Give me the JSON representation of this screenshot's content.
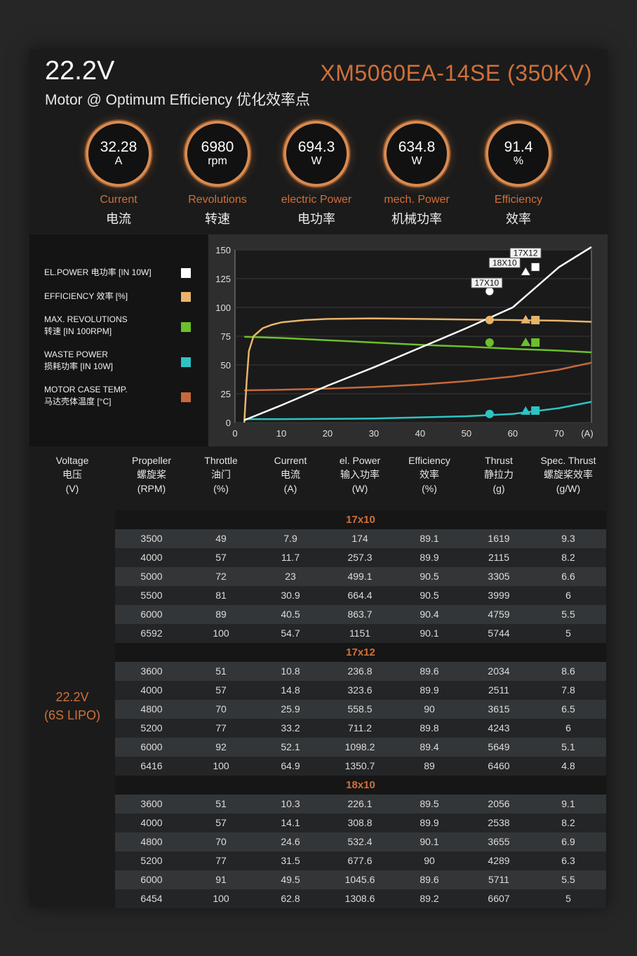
{
  "header": {
    "voltage": "22.2V",
    "model": "XM5060EA-14SE (350KV)",
    "subtitle": "Motor @ Optimum Efficiency  优化效率点"
  },
  "gauges": [
    {
      "value": "32.28",
      "unit": "A",
      "en": "Current",
      "cn": "电流"
    },
    {
      "value": "6980",
      "unit": "rpm",
      "en": "Revolutions",
      "cn": "转速"
    },
    {
      "value": "694.3",
      "unit": "W",
      "en": "electric Power",
      "cn": "电功率"
    },
    {
      "value": "634.8",
      "unit": "W",
      "en": "mech. Power",
      "cn": "机械功率"
    },
    {
      "value": "91.4",
      "unit": "%",
      "en": "Efficiency",
      "cn": "效率"
    }
  ],
  "legend": [
    {
      "line1": "EL.POWER 电功率 [IN 10W]",
      "line2": "",
      "color": "#ffffff"
    },
    {
      "line1": "EFFICIENCY 效率 [%]",
      "line2": "",
      "color": "#e8b46a"
    },
    {
      "line1": "MAX. REVOLUTIONS",
      "line2": "转速 [IN 100RPM]",
      "color": "#6cc02a"
    },
    {
      "line1": "WASTE POWER",
      "line2": "损耗功率 [IN 10W]",
      "color": "#2ec4c4"
    },
    {
      "line1": "MOTOR CASE TEMP.",
      "line2": "马达壳体温度 [°C]",
      "color": "#c8683a"
    }
  ],
  "chart_data": {
    "type": "line",
    "xlim": [
      0,
      77
    ],
    "ylim": [
      0,
      150
    ],
    "x_ticks": [
      0,
      10,
      20,
      30,
      40,
      50,
      60,
      70
    ],
    "x_unit_label": "(A)",
    "y_ticks": [
      0,
      25,
      50,
      75,
      100,
      125,
      150
    ],
    "series": [
      {
        "name": "EL.POWER 电功率 [IN 10W]",
        "color": "#ffffff",
        "x": [
          2,
          10,
          20,
          30,
          40,
          50,
          60,
          70,
          78
        ],
        "y": [
          2,
          15,
          32,
          48,
          65,
          82,
          100,
          135,
          157
        ]
      },
      {
        "name": "EFFICIENCY 效率 [%]",
        "color": "#e8b46a",
        "x": [
          2,
          2.5,
          3,
          4,
          6,
          8,
          10,
          15,
          20,
          30,
          40,
          50,
          60,
          70,
          78
        ],
        "y": [
          0,
          35,
          62,
          75,
          82,
          85,
          87,
          89,
          90,
          90.5,
          90,
          89.5,
          89,
          88.5,
          87.5
        ]
      },
      {
        "name": "MAX. REVOLUTIONS 转速 [IN 100RPM]",
        "color": "#6cc02a",
        "x": [
          2,
          10,
          20,
          30,
          40,
          50,
          60,
          70,
          78
        ],
        "y": [
          74.5,
          73.5,
          71.5,
          69.5,
          67.5,
          66,
          64,
          62.5,
          61
        ]
      },
      {
        "name": "WASTE POWER 损耗功率 [IN 10W]",
        "color": "#2ec4c4",
        "x": [
          2,
          10,
          20,
          30,
          40,
          50,
          60,
          70,
          78
        ],
        "y": [
          3,
          3,
          3.2,
          3.5,
          4.5,
          5.5,
          7.5,
          12.5,
          18
        ]
      },
      {
        "name": "MOTOR CASE TEMP. 马达壳体温度 [°C]",
        "color": "#c8683a",
        "x": [
          2,
          10,
          20,
          30,
          40,
          50,
          60,
          70,
          78
        ],
        "y": [
          28,
          28.5,
          29.5,
          31,
          33,
          36,
          40,
          46,
          52
        ]
      }
    ],
    "markers": [
      {
        "label": "17X10",
        "x": 55,
        "shape": "circle",
        "values": [
          114,
          89.1,
          69.5,
          7.5
        ]
      },
      {
        "label": "18X10",
        "x": 62.8,
        "shape": "triangle",
        "values": [
          130.9,
          89.2,
          69.5,
          9.8
        ]
      },
      {
        "label": "17X12",
        "x": 64.9,
        "shape": "square",
        "values": [
          135.1,
          89.0,
          69.5,
          10.4
        ]
      }
    ]
  },
  "table": {
    "headers": [
      {
        "en": "Voltage",
        "cn": "电压",
        "unit": "(V)"
      },
      {
        "en": "Propeller",
        "cn": "螺旋桨",
        "unit": "(RPM)"
      },
      {
        "en": "Throttle",
        "cn": "油门",
        "unit": "(%)"
      },
      {
        "en": "Current",
        "cn": "电流",
        "unit": "(A)"
      },
      {
        "en": "el. Power",
        "cn": "输入功率",
        "unit": "(W)"
      },
      {
        "en": "Efficiency",
        "cn": "效率",
        "unit": "(%)"
      },
      {
        "en": "Thrust",
        "cn": "静拉力",
        "unit": "(g)"
      },
      {
        "en": "Spec. Thrust",
        "cn": "螺旋桨效率",
        "unit": "(g/W)"
      }
    ],
    "voltage_label": "22.2V",
    "voltage_sub": "(6S LIPO)",
    "groups": [
      {
        "name": "17x10",
        "rows": [
          [
            "3500",
            "49",
            "7.9",
            "174",
            "89.1",
            "1619",
            "9.3"
          ],
          [
            "4000",
            "57",
            "11.7",
            "257.3",
            "89.9",
            "2115",
            "8.2"
          ],
          [
            "5000",
            "72",
            "23",
            "499.1",
            "90.5",
            "3305",
            "6.6"
          ],
          [
            "5500",
            "81",
            "30.9",
            "664.4",
            "90.5",
            "3999",
            "6"
          ],
          [
            "6000",
            "89",
            "40.5",
            "863.7",
            "90.4",
            "4759",
            "5.5"
          ],
          [
            "6592",
            "100",
            "54.7",
            "1151",
            "90.1",
            "5744",
            "5"
          ]
        ]
      },
      {
        "name": "17x12",
        "rows": [
          [
            "3600",
            "51",
            "10.8",
            "236.8",
            "89.6",
            "2034",
            "8.6"
          ],
          [
            "4000",
            "57",
            "14.8",
            "323.6",
            "89.9",
            "2511",
            "7.8"
          ],
          [
            "4800",
            "70",
            "25.9",
            "558.5",
            "90",
            "3615",
            "6.5"
          ],
          [
            "5200",
            "77",
            "33.2",
            "711.2",
            "89.8",
            "4243",
            "6"
          ],
          [
            "6000",
            "92",
            "52.1",
            "1098.2",
            "89.4",
            "5649",
            "5.1"
          ],
          [
            "6416",
            "100",
            "64.9",
            "1350.7",
            "89",
            "6460",
            "4.8"
          ]
        ]
      },
      {
        "name": "18x10",
        "rows": [
          [
            "3600",
            "51",
            "10.3",
            "226.1",
            "89.5",
            "2056",
            "9.1"
          ],
          [
            "4000",
            "57",
            "14.1",
            "308.8",
            "89.9",
            "2538",
            "8.2"
          ],
          [
            "4800",
            "70",
            "24.6",
            "532.4",
            "90.1",
            "3655",
            "6.9"
          ],
          [
            "5200",
            "77",
            "31.5",
            "677.6",
            "90",
            "4289",
            "6.3"
          ],
          [
            "6000",
            "91",
            "49.5",
            "1045.6",
            "89.6",
            "5711",
            "5.5"
          ],
          [
            "6454",
            "100",
            "62.8",
            "1308.6",
            "89.2",
            "6607",
            "5"
          ]
        ]
      }
    ]
  }
}
